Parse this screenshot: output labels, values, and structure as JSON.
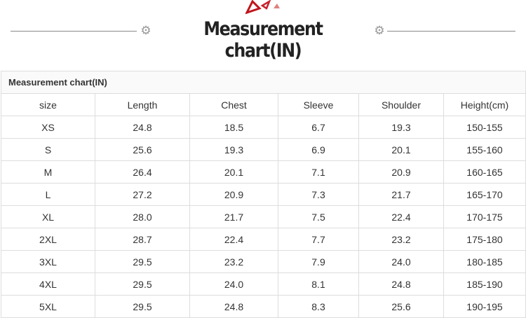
{
  "banner": {
    "title": "Measurement chart(IN)",
    "accent": "#c0141c"
  },
  "table": {
    "caption": "Measurement chart(IN)",
    "headers": [
      "size",
      "Length",
      "Chest",
      "Sleeve",
      "Shoulder",
      "Height(cm)"
    ],
    "rows": [
      [
        "XS",
        "24.8",
        "18.5",
        "6.7",
        "19.3",
        "150-155"
      ],
      [
        "S",
        "25.6",
        "19.3",
        "6.9",
        "20.1",
        "155-160"
      ],
      [
        "M",
        "26.4",
        "20.1",
        "7.1",
        "20.9",
        "160-165"
      ],
      [
        "L",
        "27.2",
        "20.9",
        "7.3",
        "21.7",
        "165-170"
      ],
      [
        "XL",
        "28.0",
        "21.7",
        "7.5",
        "22.4",
        "170-175"
      ],
      [
        "2XL",
        "28.7",
        "22.4",
        "7.7",
        "23.2",
        "175-180"
      ],
      [
        "3XL",
        "29.5",
        "23.2",
        "7.9",
        "24.0",
        "180-185"
      ],
      [
        "4XL",
        "29.5",
        "24.0",
        "8.1",
        "24.8",
        "185-190"
      ],
      [
        "5XL",
        "29.5",
        "24.8",
        "8.3",
        "25.6",
        "190-195"
      ]
    ]
  }
}
